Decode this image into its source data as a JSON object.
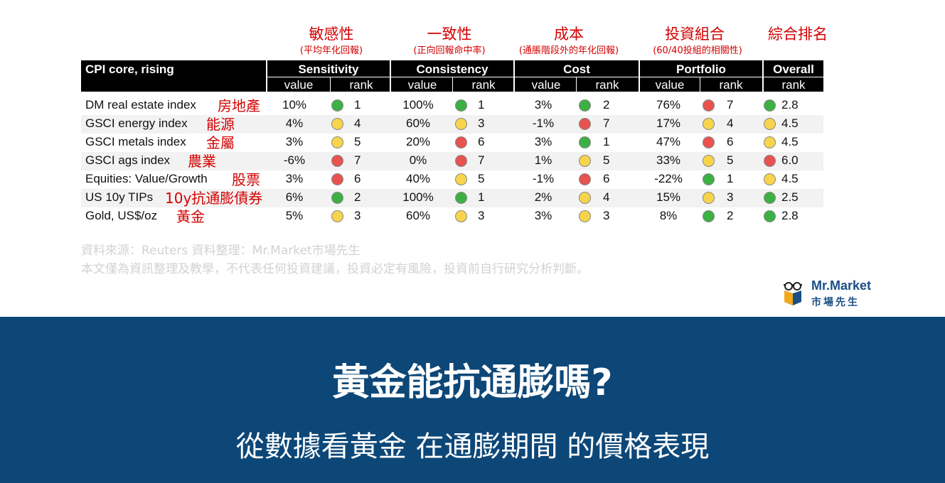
{
  "headers_zh": [
    {
      "title": "敏感性",
      "sub": "(平均年化回報)"
    },
    {
      "title": "一致性",
      "sub": "(正向回報命中率)"
    },
    {
      "title": "成本",
      "sub": "(通脹階段外的年化回報)"
    },
    {
      "title": "投資組合",
      "sub": "(60/40投組的相關性)"
    },
    {
      "title": "綜合排名",
      "sub": ""
    }
  ],
  "table_header": {
    "row_label": "CPI core, rising",
    "groups": [
      "Sensitivity",
      "Consistency",
      "Cost",
      "Portfolio",
      "Overall"
    ],
    "sub": [
      "value",
      "rank",
      "value",
      "rank",
      "value",
      "rank",
      "value",
      "rank",
      "rank"
    ]
  },
  "rows": [
    {
      "name": "DM real estate index",
      "zh": "房地產",
      "sens_v": "10%",
      "sens_c": "green",
      "sens_r": "1",
      "cons_v": "100%",
      "cons_c": "green",
      "cons_r": "1",
      "cost_v": "3%",
      "cost_c": "green",
      "cost_r": "2",
      "port_v": "76%",
      "port_c": "red",
      "port_r": "7",
      "ov_c": "green",
      "ov_r": "2.8"
    },
    {
      "name": "GSCI energy index",
      "zh": "能源",
      "sens_v": "4%",
      "sens_c": "yellow",
      "sens_r": "4",
      "cons_v": "60%",
      "cons_c": "yellow",
      "cons_r": "3",
      "cost_v": "-1%",
      "cost_c": "red",
      "cost_r": "7",
      "port_v": "17%",
      "port_c": "yellow",
      "port_r": "4",
      "ov_c": "yellow",
      "ov_r": "4.5"
    },
    {
      "name": "GSCI metals index",
      "zh": "金屬",
      "sens_v": "3%",
      "sens_c": "yellow",
      "sens_r": "5",
      "cons_v": "20%",
      "cons_c": "red",
      "cons_r": "6",
      "cost_v": "3%",
      "cost_c": "green",
      "cost_r": "1",
      "port_v": "47%",
      "port_c": "red",
      "port_r": "6",
      "ov_c": "yellow",
      "ov_r": "4.5"
    },
    {
      "name": "GSCI ags index",
      "zh": "農業",
      "sens_v": "-6%",
      "sens_c": "red",
      "sens_r": "7",
      "cons_v": "0%",
      "cons_c": "red",
      "cons_r": "7",
      "cost_v": "1%",
      "cost_c": "yellow",
      "cost_r": "5",
      "port_v": "33%",
      "port_c": "yellow",
      "port_r": "5",
      "ov_c": "red",
      "ov_r": "6.0"
    },
    {
      "name": "Equities: Value/Growth",
      "zh": "股票",
      "sens_v": "3%",
      "sens_c": "red",
      "sens_r": "6",
      "cons_v": "40%",
      "cons_c": "yellow",
      "cons_r": "5",
      "cost_v": "-1%",
      "cost_c": "red",
      "cost_r": "6",
      "port_v": "-22%",
      "port_c": "green",
      "port_r": "1",
      "ov_c": "yellow",
      "ov_r": "4.5"
    },
    {
      "name": "US 10y TIPs",
      "zh": "10y抗通膨債券",
      "sens_v": "6%",
      "sens_c": "green",
      "sens_r": "2",
      "cons_v": "100%",
      "cons_c": "green",
      "cons_r": "1",
      "cost_v": "2%",
      "cost_c": "yellow",
      "cost_r": "4",
      "port_v": "15%",
      "port_c": "yellow",
      "port_r": "3",
      "ov_c": "green",
      "ov_r": "2.5"
    },
    {
      "name": "Gold, US$/oz",
      "zh": "黃金",
      "sens_v": "5%",
      "sens_c": "yellow",
      "sens_r": "3",
      "cons_v": "60%",
      "cons_c": "yellow",
      "cons_r": "3",
      "cost_v": "3%",
      "cost_c": "yellow",
      "cost_r": "3",
      "port_v": "8%",
      "port_c": "green",
      "port_r": "2",
      "ov_c": "green",
      "ov_r": "2.8"
    }
  ],
  "colors": {
    "green": "#3cb043",
    "yellow": "#f7d44c",
    "red": "#e8534f",
    "banner": "#0d4778"
  },
  "footnote": {
    "line1": "資料來源：Reuters  資料整理：Mr.Market市場先生",
    "line2": "本文僅為資訊整理及教學，不代表任何投資建議，投資必定有風險，投資前自行研究分析判斷。"
  },
  "logo": {
    "name": "Mr.Market",
    "sub": "市場先生",
    "icon": "glasses-mascot-icon"
  },
  "banner": {
    "title": "黃金能抗通膨嗎?",
    "subtitle": "從數據看黃金 在通膨期間 的價格表現"
  }
}
